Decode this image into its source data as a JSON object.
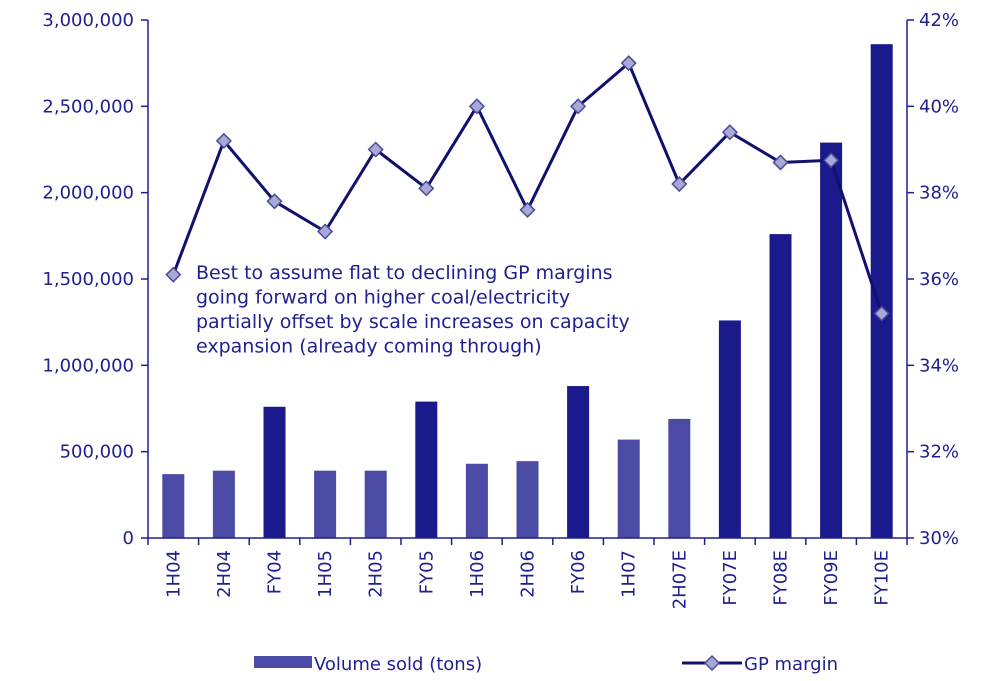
{
  "chart_data": {
    "type": "bar",
    "categories": [
      "1H04",
      "2H04",
      "FY04",
      "1H05",
      "2H05",
      "FY05",
      "1H06",
      "2H06",
      "FY06",
      "1H07",
      "2H07E",
      "FY07E",
      "FY08E",
      "FY09E",
      "FY10E"
    ],
    "bar_styles": [
      "light",
      "light",
      "dark",
      "light",
      "light",
      "dark",
      "light",
      "light",
      "dark",
      "light",
      "light",
      "dark",
      "dark",
      "dark",
      "dark"
    ],
    "series": [
      {
        "name": "Volume sold (tons)",
        "type": "bar",
        "axis": "left",
        "values": [
          370000,
          390000,
          760000,
          390000,
          390000,
          790000,
          430000,
          445000,
          880000,
          570000,
          690000,
          1260000,
          1760000,
          2290000,
          2860000
        ]
      },
      {
        "name": "GP margin",
        "type": "line",
        "axis": "right",
        "values": [
          36.1,
          39.2,
          37.8,
          37.1,
          39.0,
          38.1,
          40.0,
          37.6,
          40.0,
          41.0,
          38.2,
          39.4,
          38.7,
          38.75,
          35.2
        ]
      }
    ],
    "y_left": {
      "range": [
        0,
        3000000
      ],
      "ticks": [
        0,
        500000,
        1000000,
        1500000,
        2000000,
        2500000,
        3000000
      ],
      "tick_labels": [
        "0",
        "500,000",
        "1,000,000",
        "1,500,000",
        "2,000,000",
        "2,500,000",
        "3,000,000"
      ]
    },
    "y_right": {
      "range": [
        30,
        42
      ],
      "ticks": [
        30,
        32,
        34,
        36,
        38,
        40,
        42
      ],
      "tick_labels": [
        "30%",
        "32%",
        "34%",
        "36%",
        "38%",
        "40%",
        "42%"
      ]
    },
    "annotation": [
      "Best to assume flat to declining GP margins",
      "going forward on higher coal/electricity",
      "partially offset by scale increases on capacity",
      "expansion (already coming through)"
    ],
    "legend": {
      "position": "bottom",
      "items": [
        "Volume sold (tons)",
        "GP margin"
      ]
    },
    "colors": {
      "axis": "#1f1f8f",
      "bar_light": "#4b4ba6",
      "bar_dark": "#1a1a8c",
      "line": "#10106e",
      "marker_fill": "#a9a9d6",
      "marker_stroke": "#4b4b9a",
      "text": "#1f1f8f"
    },
    "grid": false
  }
}
